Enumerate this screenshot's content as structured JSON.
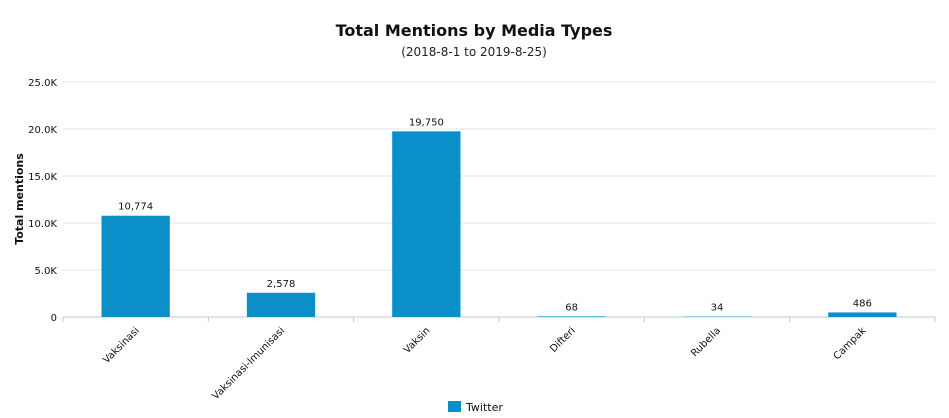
{
  "chart_data": {
    "type": "bar",
    "title": "Total Mentions by Media Types",
    "subtitle": "(2018-8-1 to 2019-8-25)",
    "xlabel": "",
    "ylabel": "Total mentions",
    "categories": [
      "Vaksinasi",
      "Vaksinasi-Imunisasi",
      "Vaksin",
      "Difteri",
      "Rubella",
      "Campak"
    ],
    "series": [
      {
        "name": "Twitter",
        "color": "#0a8fc8",
        "values": [
          10774,
          2578,
          19750,
          68,
          34,
          486
        ],
        "labels": [
          "10,774",
          "2,578",
          "19,750",
          "68",
          "34",
          "486"
        ]
      }
    ],
    "ylim": [
      0,
      25000
    ],
    "yticks": [
      0,
      5000,
      10000,
      15000,
      20000,
      25000
    ],
    "ytick_labels": [
      "0",
      "5.0K",
      "10.0K",
      "15.0K",
      "20.0K",
      "25.0K"
    ],
    "grid": true,
    "legend": "bottom-center"
  }
}
